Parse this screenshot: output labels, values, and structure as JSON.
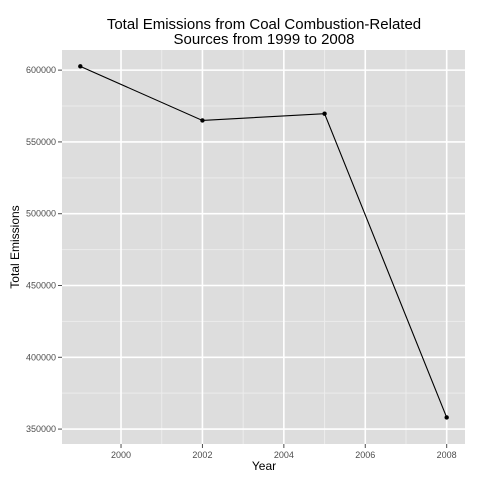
{
  "chart_data": {
    "type": "line",
    "title_lines": [
      "Total Emissions from Coal Combustion-Related",
      "Sources from 1999 to 2008"
    ],
    "xlabel": "Year",
    "ylabel": "Total Emissions",
    "x": [
      1999,
      2002,
      2005,
      2008
    ],
    "y": [
      602624,
      564940,
      569655,
      358084
    ],
    "xlim": [
      1998.55,
      2008.45
    ],
    "ylim": [
      339610,
      614020
    ],
    "x_ticks": [
      2000,
      2002,
      2004,
      2006,
      2008
    ],
    "x_tick_labels": [
      "2000",
      "2002",
      "2004",
      "2006",
      "2008"
    ],
    "y_ticks": [
      350000,
      400000,
      450000,
      500000,
      550000,
      600000
    ],
    "y_tick_labels": [
      "350000",
      "400000",
      "450000",
      "500000",
      "550000",
      "600000"
    ],
    "grid": true,
    "colors": {
      "panel": "#dddddd",
      "grid_major": "#ffffff",
      "grid_minor": "#ececec",
      "line": "#000000",
      "point": "#000000"
    }
  }
}
